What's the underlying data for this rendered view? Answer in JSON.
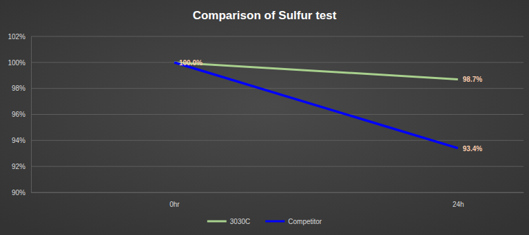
{
  "chart_data": {
    "type": "line",
    "title": "Comparison of Sulfur test",
    "categories": [
      "0hr",
      "24h"
    ],
    "series": [
      {
        "name": "3030C",
        "color": "#a9d18e",
        "values": [
          100.0,
          98.7
        ],
        "value_labels": [
          "100.0%",
          "98.7%"
        ]
      },
      {
        "name": "Competitor",
        "color": "#0000ff",
        "values": [
          100.0,
          93.4
        ],
        "value_labels": [
          null,
          "93.4%"
        ]
      }
    ],
    "ylim": [
      90,
      102
    ],
    "yticks": [
      {
        "value": 90,
        "label": "90%"
      },
      {
        "value": 92,
        "label": "92%"
      },
      {
        "value": 94,
        "label": "94%"
      },
      {
        "value": 96,
        "label": "96%"
      },
      {
        "value": 98,
        "label": "98%"
      },
      {
        "value": 100,
        "label": "100%"
      },
      {
        "value": 102,
        "label": "102%"
      }
    ],
    "grid": true,
    "legend": "bottom",
    "data_labels": true
  }
}
